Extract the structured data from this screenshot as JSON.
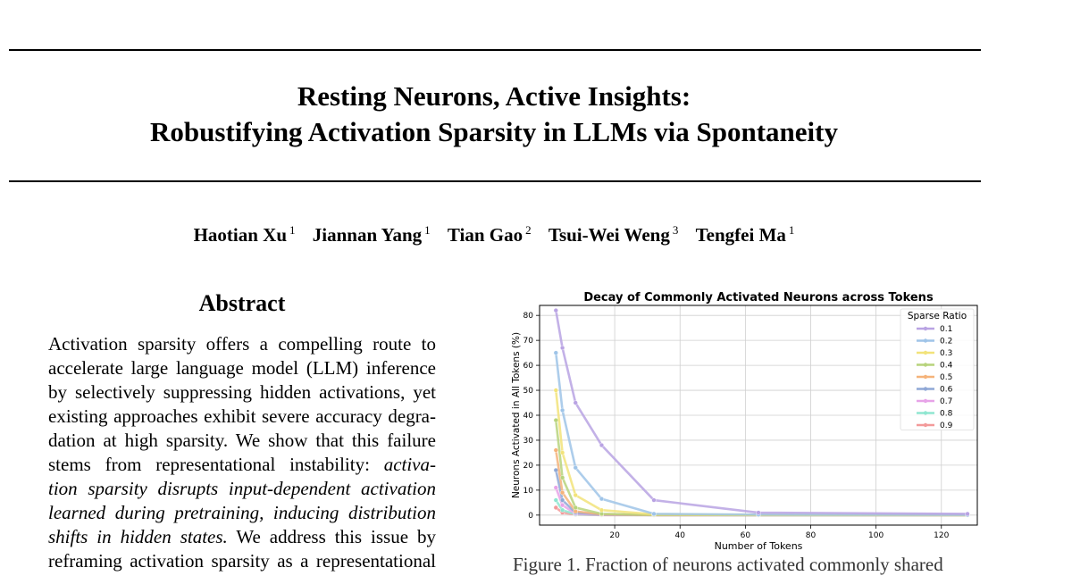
{
  "paper": {
    "title_line1": "Resting Neurons, Active Insights:",
    "title_line2": "Robustifying Activation Sparsity in LLMs via Spontaneity",
    "authors": [
      {
        "name": "Haotian Xu",
        "aff": "1"
      },
      {
        "name": "Jiannan Yang",
        "aff": "1"
      },
      {
        "name": "Tian Gao",
        "aff": "2"
      },
      {
        "name": "Tsui-Wei Weng",
        "aff": "3"
      },
      {
        "name": "Tengfei Ma",
        "aff": "1"
      }
    ],
    "abstract_heading": "Abstract",
    "abstract_lines": [
      {
        "segments": [
          {
            "t": "Activation sparsity offers a compelling route to",
            "i": false
          }
        ]
      },
      {
        "segments": [
          {
            "t": "accelerate large language model (LLM) inference",
            "i": false
          }
        ]
      },
      {
        "segments": [
          {
            "t": "by selectively suppressing hidden activations, yet",
            "i": false
          }
        ]
      },
      {
        "segments": [
          {
            "t": "existing approaches exhibit severe accuracy degra-",
            "i": false
          }
        ]
      },
      {
        "segments": [
          {
            "t": "dation at high sparsity. We show that this failure",
            "i": false
          }
        ]
      },
      {
        "segments": [
          {
            "t": "stems from representational instability: ",
            "i": false
          },
          {
            "t": "activa-",
            "i": true
          }
        ]
      },
      {
        "segments": [
          {
            "t": "tion sparsity disrupts input-dependent activation",
            "i": true
          }
        ]
      },
      {
        "segments": [
          {
            "t": "learned during pretraining, inducing distribution",
            "i": true
          }
        ]
      },
      {
        "segments": [
          {
            "t": "shifts in hidden states.",
            "i": true
          },
          {
            "t": " We address this issue by",
            "i": false
          }
        ]
      },
      {
        "segments": [
          {
            "t": "reframing activation sparsity as a representational",
            "i": false
          }
        ]
      }
    ],
    "caption_fragment": "Figure 1. Fraction of neurons activated commonly shared"
  },
  "chart_data": {
    "type": "line",
    "title": "Decay of Commonly Activated Neurons across Tokens",
    "xlabel": "Number of Tokens",
    "ylabel": "Neurons Activated in All Tokens (%)",
    "xlim": [
      -3,
      131
    ],
    "ylim": [
      -4,
      84
    ],
    "xticks": [
      20,
      40,
      60,
      80,
      100,
      120
    ],
    "yticks": [
      0,
      10,
      20,
      30,
      40,
      50,
      60,
      70,
      80
    ],
    "grid": true,
    "legend_title": "Sparse Ratio",
    "legend_position": "top-right",
    "x": [
      2,
      4,
      8,
      16,
      32,
      64,
      128
    ],
    "series": [
      {
        "name": "0.1",
        "color": "#b9a3e3",
        "values": [
          82,
          67,
          45,
          28,
          6,
          1,
          0.5
        ]
      },
      {
        "name": "0.2",
        "color": "#9fc4e8",
        "values": [
          65,
          42,
          19,
          6.5,
          0.5,
          0.2,
          0.1
        ]
      },
      {
        "name": "0.3",
        "color": "#f2e37a",
        "values": [
          50,
          25,
          8,
          2,
          0.3,
          0.1,
          0
        ]
      },
      {
        "name": "0.4",
        "color": "#b7d37c",
        "values": [
          38,
          15,
          3,
          0.5,
          0.1,
          0,
          0
        ]
      },
      {
        "name": "0.5",
        "color": "#f5b37a",
        "values": [
          26,
          9,
          1.5,
          0.3,
          0,
          0,
          0
        ]
      },
      {
        "name": "0.6",
        "color": "#8fa8d6",
        "values": [
          18,
          6,
          1,
          0.2,
          0,
          0,
          0
        ]
      },
      {
        "name": "0.7",
        "color": "#e7a3e8",
        "values": [
          11,
          4,
          0.6,
          0.1,
          0,
          0,
          0
        ]
      },
      {
        "name": "0.8",
        "color": "#8fe6d0",
        "values": [
          6,
          2,
          0.3,
          0.05,
          0,
          0,
          0
        ]
      },
      {
        "name": "0.9",
        "color": "#f39a9a",
        "values": [
          3,
          1,
          0.2,
          0,
          0,
          0,
          0
        ]
      }
    ]
  }
}
